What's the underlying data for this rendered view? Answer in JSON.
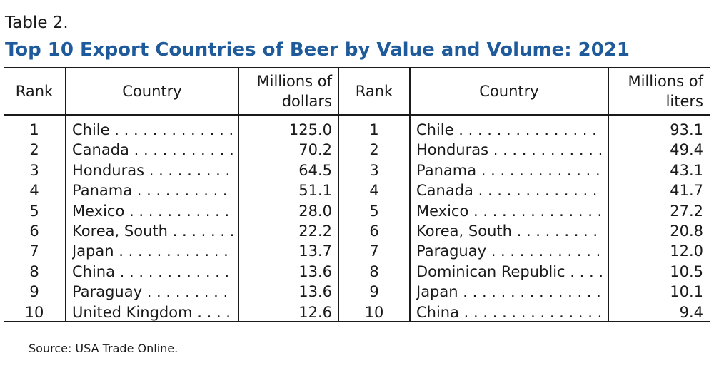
{
  "table_label": "Table 2.",
  "title": "Top 10 Export Countries of Beer by Value and Volume: 2021",
  "left": {
    "headers": {
      "rank": "Rank",
      "country": "Country",
      "value_line1": "Millions of",
      "value_line2": "dollars"
    },
    "rows": [
      {
        "rank": "1",
        "country": "Chile",
        "value": "125.0"
      },
      {
        "rank": "2",
        "country": "Canada",
        "value": "70.2"
      },
      {
        "rank": "3",
        "country": "Honduras",
        "value": "64.5"
      },
      {
        "rank": "4",
        "country": "Panama",
        "value": "51.1"
      },
      {
        "rank": "5",
        "country": "Mexico",
        "value": "28.0"
      },
      {
        "rank": "6",
        "country": "Korea, South",
        "value": "22.2"
      },
      {
        "rank": "7",
        "country": "Japan",
        "value": "13.7"
      },
      {
        "rank": "8",
        "country": "China",
        "value": "13.6"
      },
      {
        "rank": "9",
        "country": "Paraguay",
        "value": "13.6"
      },
      {
        "rank": "10",
        "country": "United Kingdom",
        "value": "12.6"
      }
    ]
  },
  "right": {
    "headers": {
      "rank": "Rank",
      "country": "Country",
      "value_line1": "Millions of",
      "value_line2": "liters"
    },
    "rows": [
      {
        "rank": "1",
        "country": "Chile",
        "value": "93.1"
      },
      {
        "rank": "2",
        "country": "Honduras",
        "value": "49.4"
      },
      {
        "rank": "3",
        "country": "Panama",
        "value": "43.1"
      },
      {
        "rank": "4",
        "country": "Canada",
        "value": "41.7"
      },
      {
        "rank": "5",
        "country": "Mexico",
        "value": "27.2"
      },
      {
        "rank": "6",
        "country": "Korea, South",
        "value": "20.8"
      },
      {
        "rank": "7",
        "country": "Paraguay",
        "value": "12.0"
      },
      {
        "rank": "8",
        "country": "Dominican Republic",
        "value": "10.5"
      },
      {
        "rank": "9",
        "country": "Japan",
        "value": "10.1"
      },
      {
        "rank": "10",
        "country": "China",
        "value": "9.4"
      }
    ]
  },
  "source": "Source: USA Trade Online."
}
